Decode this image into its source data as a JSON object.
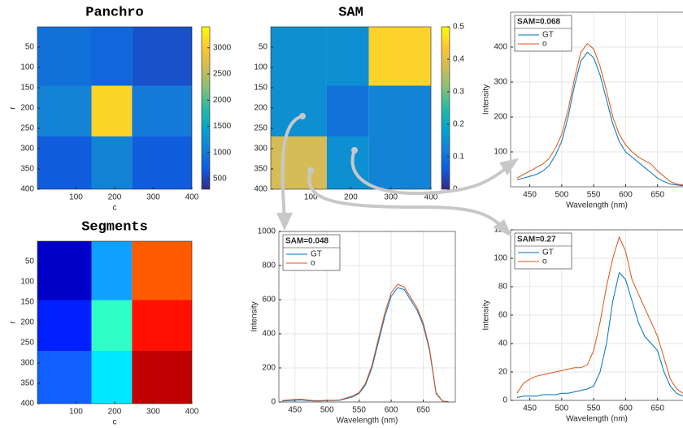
{
  "chart_data": [
    {
      "type": "heatmap",
      "title": "Panchro",
      "xlabel": "c",
      "ylabel": "r",
      "xlim": [
        0,
        400
      ],
      "ylim": [
        0,
        400
      ],
      "ydir": "reverse",
      "xticks": [
        100,
        200,
        300,
        400
      ],
      "yticks": [
        50,
        100,
        150,
        200,
        250,
        300,
        350,
        400
      ],
      "xedges": [
        0,
        140,
        245,
        400
      ],
      "yedges": [
        0,
        145,
        270,
        400
      ],
      "values": [
        [
          900,
          800,
          600
        ],
        [
          1100,
          3100,
          1000
        ],
        [
          700,
          1100,
          700
        ]
      ],
      "colormap": "parula",
      "clim": [
        300,
        3400
      ],
      "cticks": [
        500,
        1000,
        1500,
        2000,
        2500,
        3000
      ]
    },
    {
      "type": "heatmap",
      "title": "SAM",
      "xlim": [
        0,
        400
      ],
      "ylim": [
        0,
        400
      ],
      "ydir": "reverse",
      "xticks": [
        100,
        200,
        300,
        400
      ],
      "yticks": [
        50,
        100,
        150,
        200,
        250,
        300,
        350,
        400
      ],
      "xedges": [
        0,
        140,
        245,
        400
      ],
      "yedges": [
        0,
        145,
        270,
        400
      ],
      "values": [
        [
          0.15,
          0.15,
          0.45
        ],
        [
          0.15,
          0.1,
          0.13
        ],
        [
          0.38,
          0.15,
          0.13
        ]
      ],
      "colormap": "parula",
      "clim": [
        0,
        0.5
      ],
      "cticks": [
        0,
        0.1,
        0.2,
        0.3,
        0.4,
        0.5
      ]
    },
    {
      "type": "segments",
      "title": "Segments",
      "xlabel": "c",
      "ylabel": "r",
      "xlim": [
        0,
        400
      ],
      "ylim": [
        0,
        400
      ],
      "ydir": "reverse",
      "xticks": [
        100,
        200,
        300,
        400
      ],
      "yticks": [
        50,
        100,
        150,
        200,
        250,
        300,
        350,
        400
      ],
      "xedges": [
        0,
        140,
        245,
        400
      ],
      "yedges": [
        0,
        145,
        270,
        400
      ],
      "colors": [
        [
          "#0000c8",
          "#10a0ff",
          "#ff5a00"
        ],
        [
          "#0020ff",
          "#30ffc8",
          "#ff1000"
        ],
        [
          "#1060ff",
          "#00e8ff",
          "#c00000"
        ]
      ]
    },
    {
      "type": "line",
      "annotation": "SAM=0.068",
      "xlabel": "Wavelength (nm)",
      "ylabel": "Intensity",
      "grid": true,
      "xlim": [
        420,
        700
      ],
      "ylim": [
        0,
        500
      ],
      "xticks": [
        450,
        500,
        550,
        600,
        650
      ],
      "yticks": [
        100,
        200,
        300,
        400
      ],
      "x": [
        430,
        440,
        450,
        460,
        470,
        480,
        490,
        500,
        510,
        520,
        530,
        540,
        550,
        560,
        570,
        580,
        590,
        600,
        610,
        620,
        630,
        640,
        650,
        660,
        670,
        680,
        690
      ],
      "series": [
        {
          "name": "GT",
          "color": "#0072bd",
          "values": [
            20,
            25,
            30,
            35,
            45,
            60,
            90,
            130,
            200,
            290,
            360,
            385,
            370,
            320,
            250,
            180,
            130,
            100,
            85,
            70,
            55,
            40,
            25,
            15,
            8,
            5,
            3
          ]
        },
        {
          "name": "o",
          "color": "#d95319",
          "values": [
            25,
            35,
            45,
            55,
            65,
            80,
            110,
            150,
            220,
            310,
            385,
            410,
            395,
            345,
            275,
            200,
            150,
            120,
            100,
            85,
            75,
            65,
            45,
            30,
            15,
            8,
            5
          ]
        }
      ]
    },
    {
      "type": "line",
      "annotation": "SAM=0.048",
      "xlabel": "Wavelength (nm)",
      "ylabel": "Intensity",
      "grid": true,
      "xlim": [
        425,
        700
      ],
      "ylim": [
        0,
        1000
      ],
      "xticks": [
        450,
        500,
        550,
        600,
        650
      ],
      "yticks": [
        0,
        200,
        400,
        600,
        800,
        1000
      ],
      "x": [
        430,
        440,
        450,
        460,
        470,
        480,
        490,
        500,
        510,
        520,
        530,
        540,
        550,
        560,
        570,
        580,
        590,
        600,
        610,
        620,
        630,
        640,
        650,
        660,
        670,
        680,
        690
      ],
      "series": [
        {
          "name": "GT",
          "color": "#0072bd",
          "values": [
            5,
            8,
            10,
            12,
            8,
            6,
            6,
            8,
            8,
            10,
            20,
            30,
            50,
            100,
            200,
            350,
            500,
            620,
            670,
            660,
            600,
            540,
            450,
            300,
            50,
            5,
            0
          ]
        },
        {
          "name": "o",
          "color": "#d95319",
          "values": [
            8,
            12,
            15,
            16,
            12,
            8,
            8,
            10,
            10,
            12,
            25,
            35,
            55,
            110,
            215,
            370,
            520,
            640,
            690,
            675,
            615,
            555,
            465,
            310,
            55,
            6,
            0
          ]
        }
      ]
    },
    {
      "type": "line",
      "annotation": "SAM=0.27",
      "xlabel": "Wavelength (nm)",
      "ylabel": "Intensity",
      "grid": true,
      "xlim": [
        420,
        700
      ],
      "ylim": [
        0,
        120
      ],
      "xticks": [
        450,
        500,
        550,
        600,
        650
      ],
      "yticks": [
        0,
        20,
        40,
        60,
        80,
        100,
        120
      ],
      "x": [
        430,
        440,
        450,
        460,
        470,
        480,
        490,
        500,
        510,
        520,
        530,
        540,
        550,
        560,
        570,
        580,
        590,
        600,
        610,
        620,
        630,
        640,
        650,
        660,
        670,
        680,
        690
      ],
      "series": [
        {
          "name": "GT",
          "color": "#0072bd",
          "values": [
            2,
            3,
            3,
            3,
            4,
            4,
            4,
            5,
            5,
            6,
            7,
            8,
            10,
            20,
            40,
            70,
            90,
            85,
            70,
            55,
            45,
            40,
            35,
            20,
            10,
            5,
            3
          ]
        },
        {
          "name": "o",
          "color": "#d95319",
          "values": [
            5,
            12,
            15,
            17,
            18,
            19,
            20,
            21,
            22,
            23,
            23,
            25,
            35,
            55,
            80,
            100,
            115,
            105,
            85,
            75,
            65,
            55,
            45,
            30,
            15,
            8,
            5
          ]
        }
      ]
    }
  ]
}
